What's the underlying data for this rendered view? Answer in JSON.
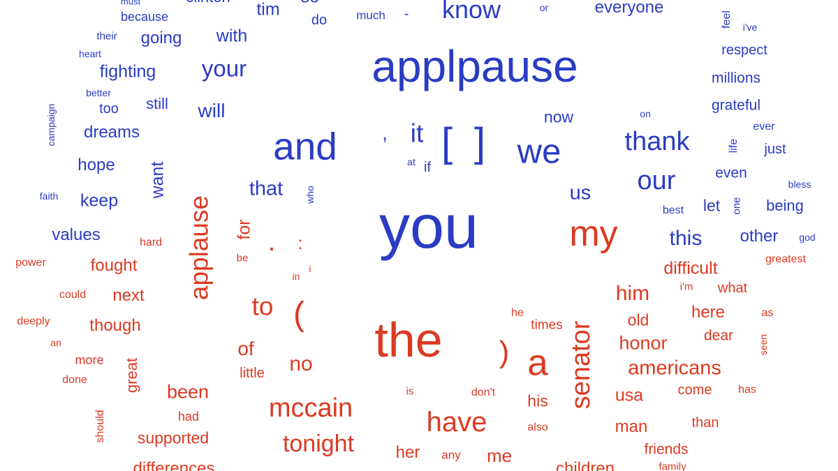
{
  "colors": {
    "blue": "#2a3cc4",
    "red": "#dc3a22"
  },
  "words": [
    {
      "text": "must",
      "color": "blue"
    },
    {
      "text": "clinton",
      "color": "blue"
    },
    {
      "text": "because",
      "color": "blue"
    },
    {
      "text": "tim",
      "color": "blue"
    },
    {
      "text": "so",
      "color": "blue"
    },
    {
      "text": "do",
      "color": "blue"
    },
    {
      "text": "much",
      "color": "blue"
    },
    {
      "text": "-",
      "color": "blue"
    },
    {
      "text": "know",
      "color": "blue"
    },
    {
      "text": "or",
      "color": "blue"
    },
    {
      "text": "everyone",
      "color": "blue"
    },
    {
      "text": "feel",
      "color": "blue"
    },
    {
      "text": "i've",
      "color": "blue"
    },
    {
      "text": "their",
      "color": "blue"
    },
    {
      "text": "going",
      "color": "blue"
    },
    {
      "text": "with",
      "color": "blue"
    },
    {
      "text": "heart",
      "color": "blue"
    },
    {
      "text": "applpause",
      "color": "blue"
    },
    {
      "text": "respect",
      "color": "blue"
    },
    {
      "text": "fighting",
      "color": "blue"
    },
    {
      "text": "your",
      "color": "blue"
    },
    {
      "text": "millions",
      "color": "blue"
    },
    {
      "text": "better",
      "color": "blue"
    },
    {
      "text": "too",
      "color": "blue"
    },
    {
      "text": "still",
      "color": "blue"
    },
    {
      "text": "will",
      "color": "blue"
    },
    {
      "text": "grateful",
      "color": "blue"
    },
    {
      "text": "campaign",
      "color": "blue"
    },
    {
      "text": "now",
      "color": "blue"
    },
    {
      "text": "on",
      "color": "blue"
    },
    {
      "text": "ever",
      "color": "blue"
    },
    {
      "text": "dreams",
      "color": "blue"
    },
    {
      "text": ",",
      "color": "blue"
    },
    {
      "text": "it",
      "color": "blue"
    },
    {
      "text": "[",
      "color": "blue"
    },
    {
      "text": "]",
      "color": "blue"
    },
    {
      "text": "thank",
      "color": "blue"
    },
    {
      "text": "life",
      "color": "blue"
    },
    {
      "text": "just",
      "color": "blue"
    },
    {
      "text": "and",
      "color": "blue"
    },
    {
      "text": "we",
      "color": "blue"
    },
    {
      "text": "hope",
      "color": "blue"
    },
    {
      "text": "at",
      "color": "blue"
    },
    {
      "text": "if",
      "color": "blue"
    },
    {
      "text": "even",
      "color": "blue"
    },
    {
      "text": "our",
      "color": "blue"
    },
    {
      "text": "want",
      "color": "blue"
    },
    {
      "text": "bless",
      "color": "blue"
    },
    {
      "text": "that",
      "color": "blue"
    },
    {
      "text": "faith",
      "color": "blue"
    },
    {
      "text": "keep",
      "color": "blue"
    },
    {
      "text": "who",
      "color": "blue"
    },
    {
      "text": "us",
      "color": "blue"
    },
    {
      "text": "one",
      "color": "blue"
    },
    {
      "text": "being",
      "color": "blue"
    },
    {
      "text": "best",
      "color": "blue"
    },
    {
      "text": "let",
      "color": "blue"
    },
    {
      "text": "you",
      "color": "blue"
    },
    {
      "text": "values",
      "color": "blue"
    },
    {
      "text": "this",
      "color": "blue"
    },
    {
      "text": "other",
      "color": "blue"
    },
    {
      "text": "god",
      "color": "blue"
    },
    {
      "text": "applause",
      "color": "red"
    },
    {
      "text": "for",
      "color": "red"
    },
    {
      "text": "hard",
      "color": "red"
    },
    {
      "text": ".",
      "color": "red"
    },
    {
      "text": ":",
      "color": "red"
    },
    {
      "text": "my",
      "color": "red"
    },
    {
      "text": "power",
      "color": "red"
    },
    {
      "text": "fought",
      "color": "red"
    },
    {
      "text": "be",
      "color": "red"
    },
    {
      "text": "i",
      "color": "red"
    },
    {
      "text": "in",
      "color": "red"
    },
    {
      "text": "difficult",
      "color": "red"
    },
    {
      "text": "greatest",
      "color": "red"
    },
    {
      "text": "could",
      "color": "red"
    },
    {
      "text": "next",
      "color": "red"
    },
    {
      "text": "i'm",
      "color": "red"
    },
    {
      "text": "what",
      "color": "red"
    },
    {
      "text": "him",
      "color": "red"
    },
    {
      "text": "to",
      "color": "red"
    },
    {
      "text": "(",
      "color": "red"
    },
    {
      "text": "deeply",
      "color": "red"
    },
    {
      "text": "though",
      "color": "red"
    },
    {
      "text": "the",
      "color": "red"
    },
    {
      "text": "he",
      "color": "red"
    },
    {
      "text": "times",
      "color": "red"
    },
    {
      "text": "here",
      "color": "red"
    },
    {
      "text": "old",
      "color": "red"
    },
    {
      "text": "an",
      "color": "red"
    },
    {
      "text": "as",
      "color": "red"
    },
    {
      "text": "dear",
      "color": "red"
    },
    {
      "text": "honor",
      "color": "red"
    },
    {
      "text": "seen",
      "color": "red"
    },
    {
      "text": "of",
      "color": "red"
    },
    {
      "text": ")",
      "color": "red"
    },
    {
      "text": "a",
      "color": "red"
    },
    {
      "text": "senator",
      "color": "red"
    },
    {
      "text": "more",
      "color": "red"
    },
    {
      "text": "great",
      "color": "red"
    },
    {
      "text": "little",
      "color": "red"
    },
    {
      "text": "no",
      "color": "red"
    },
    {
      "text": "americans",
      "color": "red"
    },
    {
      "text": "done",
      "color": "red"
    },
    {
      "text": "been",
      "color": "red"
    },
    {
      "text": "is",
      "color": "red"
    },
    {
      "text": "don't",
      "color": "red"
    },
    {
      "text": "usa",
      "color": "red"
    },
    {
      "text": "come",
      "color": "red"
    },
    {
      "text": "has",
      "color": "red"
    },
    {
      "text": "mccain",
      "color": "red"
    },
    {
      "text": "his",
      "color": "red"
    },
    {
      "text": "had",
      "color": "red"
    },
    {
      "text": "should",
      "color": "red"
    },
    {
      "text": "have",
      "color": "red"
    },
    {
      "text": "than",
      "color": "red"
    },
    {
      "text": "man",
      "color": "red"
    },
    {
      "text": "also",
      "color": "red"
    },
    {
      "text": "supported",
      "color": "red"
    },
    {
      "text": "tonight",
      "color": "red"
    },
    {
      "text": "friends",
      "color": "red"
    },
    {
      "text": "her",
      "color": "red"
    },
    {
      "text": "any",
      "color": "red"
    },
    {
      "text": "me",
      "color": "red"
    },
    {
      "text": "differences",
      "color": "red"
    },
    {
      "text": "children",
      "color": "red"
    },
    {
      "text": "family",
      "color": "red"
    }
  ]
}
